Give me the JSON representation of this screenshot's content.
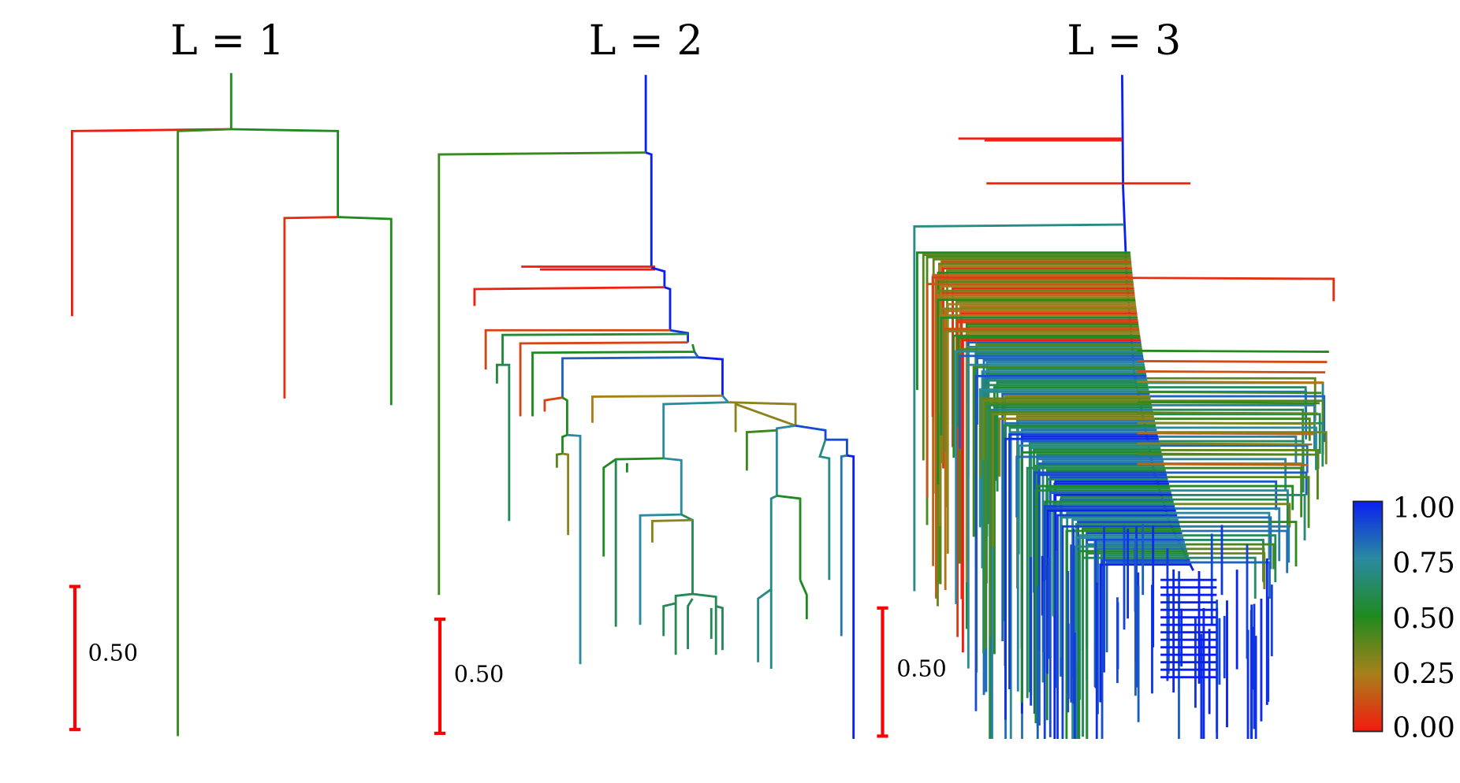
{
  "panels": [
    {
      "title": "L = 1",
      "scale_label": "0.50"
    },
    {
      "title": "L = 2",
      "scale_label": "0.50"
    },
    {
      "title": "L = 3",
      "scale_label": "0.50"
    }
  ],
  "colorbar": {
    "ticks": [
      "1.00",
      "0.75",
      "0.50",
      "0.25",
      "0.00"
    ],
    "range": [
      0,
      1
    ],
    "colors": {
      "0.00": "#f41a10",
      "0.25": "#a8801a",
      "0.50": "#1f8a1f",
      "0.75": "#2a8aa0",
      "1.00": "#0a20f0"
    }
  },
  "scale_bar_color": "#ff0000"
}
